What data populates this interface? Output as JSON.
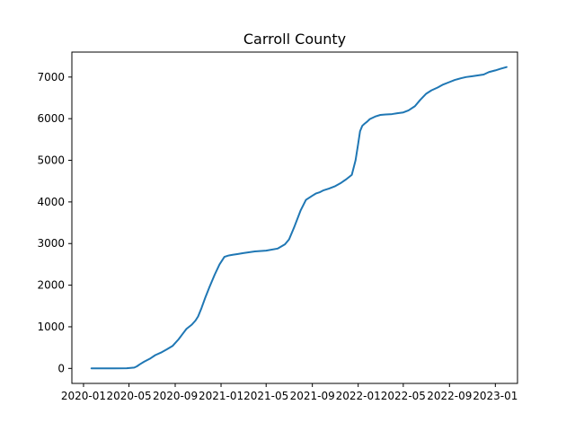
{
  "chart_data": {
    "type": "line",
    "title": "Carroll County",
    "xlabel": "",
    "ylabel": "",
    "x_type": "date",
    "xlim": [
      "2019-12-01",
      "2023-03-01"
    ],
    "ylim": [
      -360,
      7600
    ],
    "x_ticks": [
      {
        "value": "2020-01-01",
        "label": "2020-01"
      },
      {
        "value": "2020-05-01",
        "label": "2020-05"
      },
      {
        "value": "2020-09-01",
        "label": "2020-09"
      },
      {
        "value": "2021-01-01",
        "label": "2021-01"
      },
      {
        "value": "2021-05-01",
        "label": "2021-05"
      },
      {
        "value": "2021-09-01",
        "label": "2021-09"
      },
      {
        "value": "2022-01-01",
        "label": "2022-01"
      },
      {
        "value": "2022-05-01",
        "label": "2022-05"
      },
      {
        "value": "2022-09-01",
        "label": "2022-09"
      },
      {
        "value": "2023-01-01",
        "label": "2023-01"
      }
    ],
    "y_ticks": [
      0,
      1000,
      2000,
      3000,
      4000,
      5000,
      6000,
      7000
    ],
    "grid": false,
    "line_color": "#1f77b4",
    "series": [
      {
        "x": [
          "2020-01-22",
          "2020-03-15",
          "2020-04-25",
          "2020-05-15",
          "2020-05-22",
          "2020-05-30",
          "2020-06-10",
          "2020-06-25",
          "2020-07-10",
          "2020-07-25",
          "2020-08-10",
          "2020-08-25",
          "2020-09-10",
          "2020-09-20",
          "2020-10-01",
          "2020-10-15",
          "2020-10-25",
          "2020-11-01",
          "2020-11-10",
          "2020-11-20",
          "2020-12-01",
          "2020-12-15",
          "2020-12-28",
          "2021-01-10",
          "2021-01-20",
          "2021-02-01",
          "2021-02-15",
          "2021-03-01",
          "2021-04-01",
          "2021-05-01",
          "2021-06-01",
          "2021-06-20",
          "2021-07-01",
          "2021-07-15",
          "2021-08-01",
          "2021-08-15",
          "2021-09-01",
          "2021-09-10",
          "2021-09-20",
          "2021-10-01",
          "2021-10-15",
          "2021-11-01",
          "2021-11-15",
          "2021-12-01",
          "2021-12-15",
          "2021-12-25",
          "2022-01-01",
          "2022-01-06",
          "2022-01-12",
          "2022-01-18",
          "2022-01-25",
          "2022-02-01",
          "2022-02-15",
          "2022-03-01",
          "2022-03-15",
          "2022-04-01",
          "2022-04-15",
          "2022-05-01",
          "2022-05-15",
          "2022-06-01",
          "2022-06-15",
          "2022-07-01",
          "2022-07-15",
          "2022-08-01",
          "2022-08-15",
          "2022-09-01",
          "2022-09-15",
          "2022-10-01",
          "2022-10-15",
          "2022-11-01",
          "2022-12-01",
          "2022-12-15",
          "2023-01-01",
          "2023-01-15",
          "2023-01-31"
        ],
        "values": [
          0,
          0,
          5,
          20,
          50,
          100,
          160,
          230,
          320,
          380,
          460,
          540,
          700,
          820,
          950,
          1050,
          1150,
          1250,
          1450,
          1700,
          1950,
          2250,
          2500,
          2680,
          2710,
          2730,
          2750,
          2770,
          2810,
          2830,
          2880,
          2980,
          3100,
          3400,
          3800,
          4050,
          4150,
          4200,
          4230,
          4280,
          4320,
          4380,
          4450,
          4550,
          4650,
          5000,
          5400,
          5700,
          5830,
          5880,
          5930,
          5990,
          6050,
          6090,
          6100,
          6110,
          6130,
          6150,
          6200,
          6300,
          6450,
          6600,
          6680,
          6750,
          6820,
          6880,
          6930,
          6970,
          7000,
          7020,
          7060,
          7120,
          7160,
          7200,
          7240
        ]
      }
    ]
  }
}
